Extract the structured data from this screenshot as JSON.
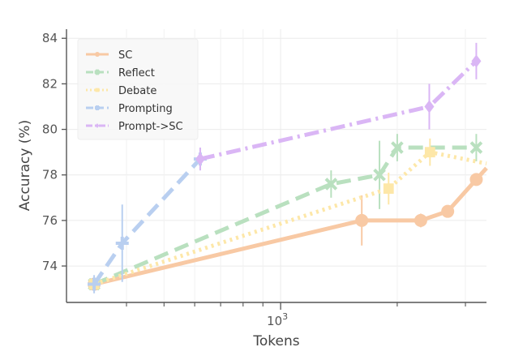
{
  "chart_data": {
    "type": "line",
    "xlabel": "Tokens",
    "ylabel": "Accuracy (%)",
    "xscale": "log",
    "xlim": [
      280,
      3400
    ],
    "ylim": [
      72.4,
      84.4
    ],
    "yticks": [
      74,
      76,
      78,
      80,
      82,
      84
    ],
    "xtick_labels": [
      {
        "value": 1000,
        "base": "10",
        "exp": "3"
      }
    ],
    "x_minor_ticks": [
      400,
      500,
      600,
      700,
      800,
      900,
      2000,
      3000
    ],
    "grid": true,
    "legend": "top-left",
    "series": [
      {
        "name": "SC",
        "color": "#f8c9a4",
        "dash": "solid",
        "marker": "circle",
        "points": [
          {
            "x": 330,
            "y": 73.2,
            "err": 0.3
          },
          {
            "x": 1620,
            "y": 76.0,
            "err": 1.1
          },
          {
            "x": 2300,
            "y": 76.0,
            "err": 0.3
          },
          {
            "x": 2700,
            "y": 76.4,
            "err": 0.2
          },
          {
            "x": 3200,
            "y": 77.8,
            "err": 0.2
          }
        ],
        "tail": {
          "x": 3400,
          "y": 78.3
        }
      },
      {
        "name": "Reflect",
        "color": "#b9e0bf",
        "dash": "dash",
        "marker": "x",
        "points": [
          {
            "x": 330,
            "y": 73.2,
            "err": 0.3
          },
          {
            "x": 1350,
            "y": 77.6,
            "err": 0.6
          },
          {
            "x": 1800,
            "y": 78.0,
            "err": 1.5
          },
          {
            "x": 2000,
            "y": 79.2,
            "err": 0.6
          },
          {
            "x": 3200,
            "y": 79.2,
            "err": 0.6
          }
        ]
      },
      {
        "name": "Debate",
        "color": "#fde7a8",
        "dash": "dot",
        "marker": "square",
        "points": [
          {
            "x": 330,
            "y": 73.2,
            "err": 0.3
          },
          {
            "x": 1900,
            "y": 77.4,
            "err": 0.7
          },
          {
            "x": 2430,
            "y": 79.0,
            "err": 0.6
          }
        ],
        "tail": {
          "x": 3400,
          "y": 78.5
        }
      },
      {
        "name": "Prompting",
        "color": "#b9cff0",
        "dash": "dash",
        "marker": "plus",
        "points": [
          {
            "x": 330,
            "y": 73.2,
            "err": 0.4
          },
          {
            "x": 390,
            "y": 75.0,
            "err": 1.7
          },
          {
            "x": 620,
            "y": 78.7,
            "err": 0.5
          }
        ]
      },
      {
        "name": "Prompt->SC",
        "color": "#dab6f5",
        "dash": "dashdot",
        "marker": "diamond",
        "points": [
          {
            "x": 620,
            "y": 78.7,
            "err": 0.5
          },
          {
            "x": 2420,
            "y": 81.0,
            "err": 1.0
          },
          {
            "x": 3200,
            "y": 83.0,
            "err": 0.8
          }
        ]
      }
    ]
  }
}
